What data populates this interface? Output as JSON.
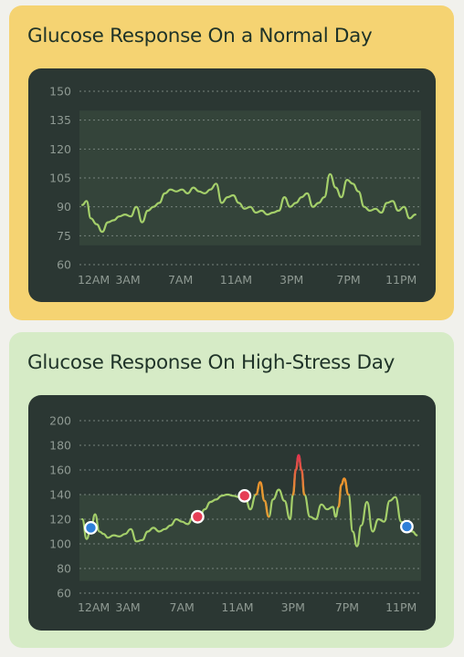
{
  "colors": {
    "line": "#a4cf6a",
    "spike_orange": "#f0902a",
    "spike_red": "#e2324e",
    "grid": "#77837d",
    "band": "#34443a",
    "marker_blue": "#2f7fd8",
    "marker_red": "#e63e55"
  },
  "chart_data": [
    {
      "type": "line",
      "title": "Glucose Response On a Normal Day",
      "ylim": [
        60,
        150
      ],
      "yticks": [
        150,
        135,
        120,
        105,
        90,
        75,
        60
      ],
      "target_band": [
        70,
        140
      ],
      "grid": "dotted-horizontal",
      "xlim": [
        0,
        24
      ],
      "xtick_labels": [
        {
          "label": "12AM",
          "x": 1
        },
        {
          "label": "3AM",
          "x": 3.4
        },
        {
          "label": "7AM",
          "x": 7.1
        },
        {
          "label": "11AM",
          "x": 11
        },
        {
          "label": "3PM",
          "x": 14.9
        },
        {
          "label": "7PM",
          "x": 18.9
        },
        {
          "label": "11PM",
          "x": 22.6
        }
      ],
      "series": [
        {
          "x": [
            0.2,
            0.5,
            0.8,
            1.2,
            1.6,
            2.0,
            2.4,
            2.8,
            3.2,
            3.6,
            4.0,
            4.4,
            4.8,
            5.2,
            5.6,
            6.0,
            6.4,
            6.8,
            7.2,
            7.6,
            8.0,
            8.4,
            8.8,
            9.2,
            9.6,
            10.0,
            10.4,
            10.8,
            11.2,
            11.6,
            12.0,
            12.4,
            12.8,
            13.2,
            13.6,
            14.0,
            14.4,
            14.8,
            15.2,
            15.6,
            16.0,
            16.4,
            16.8,
            17.2,
            17.6,
            18.0,
            18.4,
            18.8,
            19.2,
            19.6,
            20.0,
            20.4,
            20.8,
            21.2,
            21.6,
            22.0,
            22.4,
            22.8,
            23.2,
            23.6
          ],
          "y": [
            91,
            93,
            84,
            81,
            77,
            82,
            83,
            85,
            86,
            85,
            90,
            82,
            88,
            90,
            92,
            97,
            99,
            98,
            99,
            97,
            100,
            98,
            97,
            99,
            102,
            92,
            95,
            96,
            92,
            89,
            90,
            87,
            88,
            86,
            87,
            88,
            95,
            90,
            92,
            95,
            97,
            90,
            92,
            95,
            107,
            100,
            95,
            104,
            102,
            98,
            90,
            88,
            89,
            87,
            92,
            93,
            88,
            90,
            84,
            86
          ]
        }
      ]
    },
    {
      "type": "line",
      "title": "Glucose Response On High-Stress Day",
      "ylim": [
        60,
        200
      ],
      "yticks": [
        200,
        180,
        160,
        140,
        120,
        100,
        80,
        60
      ],
      "target_band": [
        70,
        140
      ],
      "grid": "dotted-horizontal",
      "xlim": [
        0,
        24
      ],
      "xtick_labels": [
        {
          "label": "12AM",
          "x": 1
        },
        {
          "label": "3AM",
          "x": 3.4
        },
        {
          "label": "7AM",
          "x": 7.2
        },
        {
          "label": "11AM",
          "x": 11.1
        },
        {
          "label": "3PM",
          "x": 15
        },
        {
          "label": "7PM",
          "x": 18.8
        },
        {
          "label": "11PM",
          "x": 22.6
        }
      ],
      "series": [
        {
          "x": [
            0.2,
            0.5,
            0.8,
            1.1,
            1.4,
            1.7,
            2.0,
            2.4,
            2.8,
            3.2,
            3.6,
            4.0,
            4.4,
            4.8,
            5.2,
            5.6,
            6.0,
            6.4,
            6.8,
            7.2,
            7.6,
            8.0,
            8.4,
            8.8,
            9.2,
            9.6,
            10.0,
            10.4,
            10.8,
            11.2,
            11.6,
            12.0,
            12.4,
            12.7,
            13.0,
            13.3,
            13.6,
            14.0,
            14.4,
            14.8,
            15.0,
            15.2,
            15.4,
            15.6,
            15.8,
            16.2,
            16.6,
            17.0,
            17.4,
            17.8,
            18.0,
            18.2,
            18.4,
            18.6,
            18.9,
            19.2,
            19.5,
            19.8,
            20.2,
            20.6,
            21.0,
            21.4,
            21.8,
            22.2,
            22.6,
            23.0,
            23.4,
            23.7
          ],
          "y": [
            120,
            104,
            112,
            124,
            110,
            108,
            105,
            107,
            106,
            108,
            112,
            102,
            103,
            110,
            113,
            110,
            112,
            115,
            120,
            118,
            116,
            122,
            120,
            128,
            134,
            136,
            139,
            140,
            139,
            138,
            140,
            128,
            140,
            150,
            135,
            122,
            136,
            144,
            135,
            120,
            140,
            160,
            172,
            160,
            140,
            122,
            120,
            132,
            128,
            130,
            122,
            130,
            148,
            153,
            140,
            110,
            98,
            115,
            134,
            110,
            120,
            118,
            135,
            138,
            118,
            113,
            110,
            107
          ]
        }
      ],
      "spikes": [
        {
          "start": 12.2,
          "end": 13.4,
          "peak": 150,
          "peak_x": 12.7,
          "color": "orange"
        },
        {
          "start": 13.8,
          "end": 14.3,
          "peak": 144,
          "peak_x": 14.0,
          "color": "orange"
        },
        {
          "start": 15.0,
          "end": 15.8,
          "peak": 172,
          "peak_x": 15.4,
          "color": "red"
        },
        {
          "start": 18.2,
          "end": 18.9,
          "peak": 153,
          "peak_x": 18.6,
          "color": "orange"
        }
      ],
      "markers": [
        {
          "x": 0.8,
          "y": 113,
          "color": "blue"
        },
        {
          "x": 8.3,
          "y": 122,
          "color": "red"
        },
        {
          "x": 11.6,
          "y": 139,
          "color": "red"
        },
        {
          "x": 23.0,
          "y": 114,
          "color": "blue"
        }
      ]
    }
  ]
}
